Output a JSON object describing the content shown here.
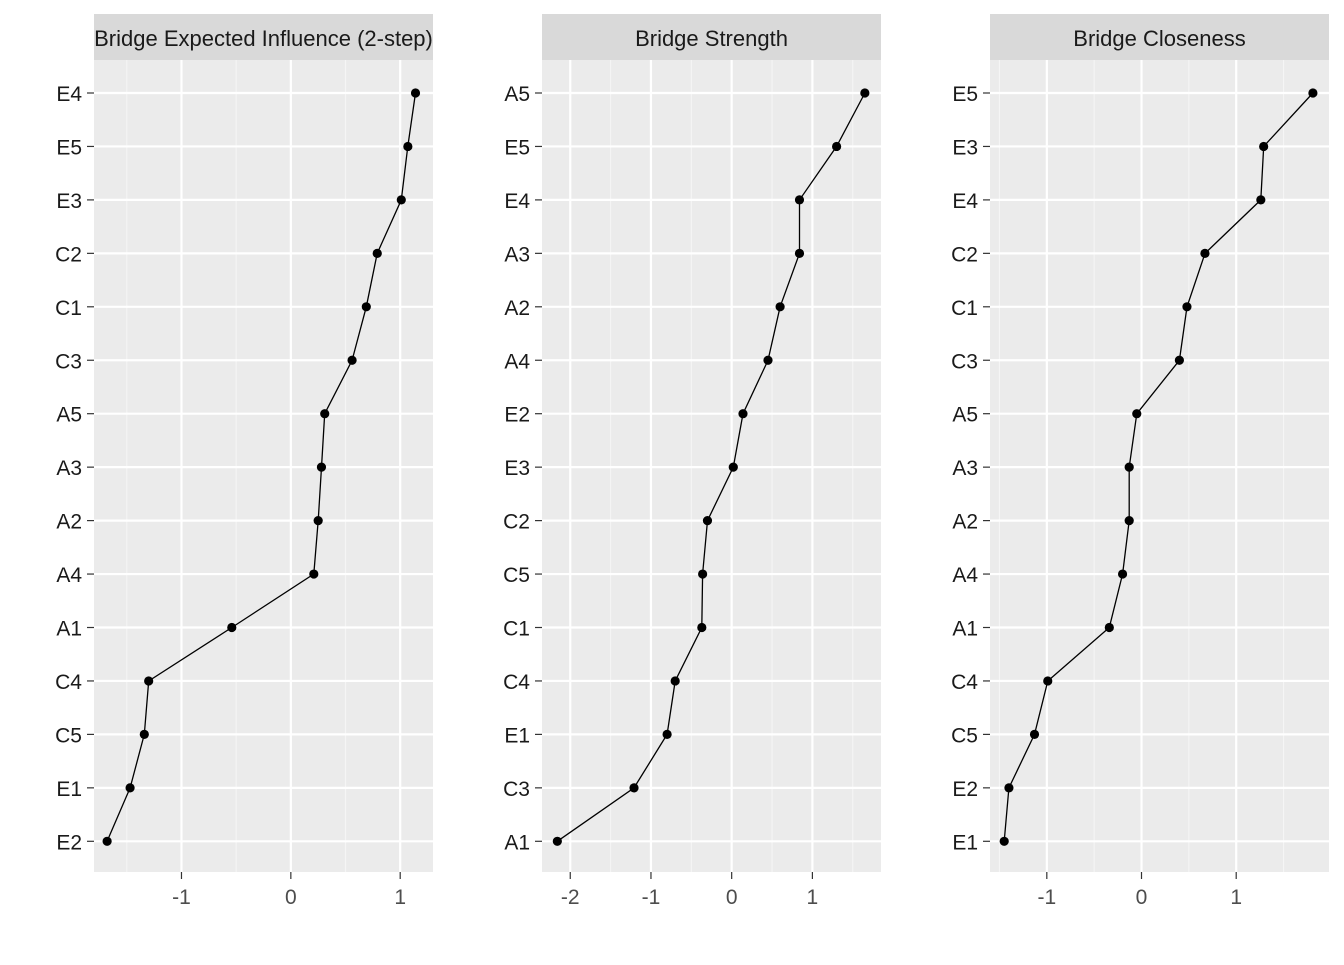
{
  "chart_data": [
    {
      "type": "line",
      "title": "Bridge Expected Influence (2-step)",
      "categories": [
        "E2",
        "E1",
        "C5",
        "C4",
        "A1",
        "A4",
        "A2",
        "A3",
        "A5",
        "C3",
        "C1",
        "C2",
        "E3",
        "E5",
        "E4"
      ],
      "values": [
        -1.68,
        -1.47,
        -1.34,
        -1.3,
        -0.54,
        0.21,
        0.25,
        0.28,
        0.31,
        0.56,
        0.69,
        0.79,
        1.01,
        1.07,
        1.14
      ],
      "xlim": [
        -1.8,
        1.3
      ],
      "xticks": [
        -1,
        0,
        1
      ],
      "xtick_labels": [
        "-1",
        "0",
        "1"
      ]
    },
    {
      "type": "line",
      "title": "Bridge Strength",
      "categories": [
        "A1",
        "C3",
        "E1",
        "C4",
        "C1",
        "C5",
        "C2",
        "E3",
        "E2",
        "A4",
        "A2",
        "A3",
        "E4",
        "E5",
        "A5"
      ],
      "values": [
        -2.16,
        -1.21,
        -0.8,
        -0.7,
        -0.37,
        -0.36,
        -0.3,
        0.02,
        0.14,
        0.45,
        0.6,
        0.84,
        0.84,
        1.3,
        1.65
      ],
      "xlim": [
        -2.35,
        1.85
      ],
      "xticks": [
        -2,
        -1,
        0,
        1
      ],
      "xtick_labels": [
        "-2",
        "-1",
        "0",
        "1"
      ]
    },
    {
      "type": "line",
      "title": "Bridge Closeness",
      "categories": [
        "E1",
        "E2",
        "C5",
        "C4",
        "A1",
        "A4",
        "A2",
        "A3",
        "A5",
        "C3",
        "C1",
        "C2",
        "E4",
        "E3",
        "E5"
      ],
      "values": [
        -1.45,
        -1.4,
        -1.13,
        -0.99,
        -0.34,
        -0.2,
        -0.13,
        -0.13,
        -0.05,
        0.4,
        0.48,
        0.67,
        1.26,
        1.29,
        1.81
      ],
      "xlim": [
        -1.6,
        1.98
      ],
      "xticks": [
        -1,
        0,
        1
      ],
      "xtick_labels": [
        "-1",
        "0",
        "1"
      ]
    }
  ]
}
